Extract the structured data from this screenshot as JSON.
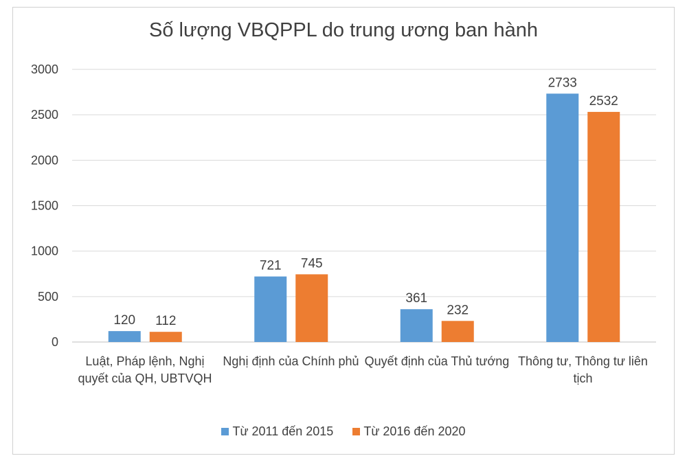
{
  "chart_data": {
    "type": "bar",
    "title": "Số lượng VBQPPL do trung ương ban hành",
    "categories": [
      "Luật, Pháp lệnh, Nghị quyết của QH, UBTVQH",
      "Nghị định của Chính phủ",
      "Quyết định của Thủ tướng",
      "Thông tư, Thông tư liên tịch"
    ],
    "series": [
      {
        "name": "Từ 2011 đến 2015",
        "values": [
          120,
          721,
          361,
          2733
        ],
        "color": "#5b9bd5"
      },
      {
        "name": "Từ 2016 đến 2020",
        "values": [
          112,
          745,
          232,
          2532
        ],
        "color": "#ed7d31"
      }
    ],
    "ylim": [
      0,
      3000
    ],
    "yticks": [
      0,
      500,
      1000,
      1500,
      2000,
      2500,
      3000
    ],
    "grid": true,
    "legend": "bottom",
    "xlabel": "",
    "ylabel": ""
  }
}
